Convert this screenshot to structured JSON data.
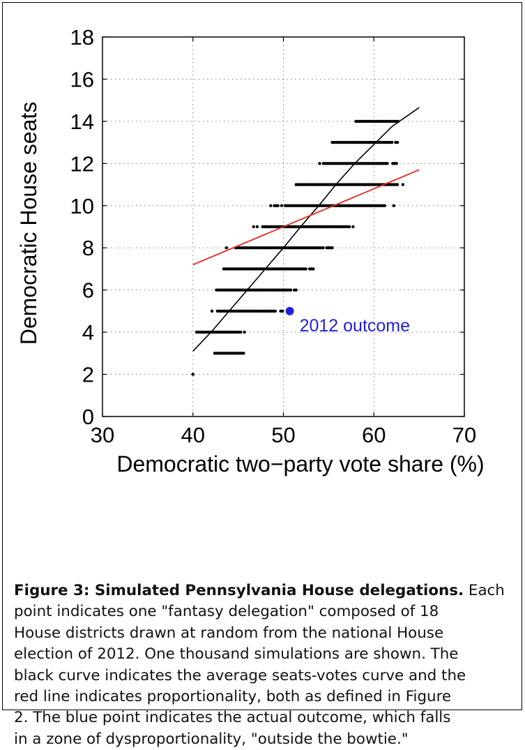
{
  "chart_data": {
    "type": "scatter",
    "xlabel": "Democratic two−party vote share (%)",
    "ylabel": "Democratic House seats",
    "xlim": [
      30,
      70
    ],
    "ylim": [
      0,
      18
    ],
    "xticks": [
      30,
      40,
      50,
      60,
      70
    ],
    "yticks": [
      0,
      2,
      4,
      6,
      8,
      10,
      12,
      14,
      16,
      18
    ],
    "grid": true,
    "simulations": {
      "color": "#000000",
      "rows": [
        {
          "seats": 2,
          "x_min": 40.0,
          "x_max": 40.0
        },
        {
          "seats": 3,
          "x_min": 42.0,
          "x_max": 45.8
        },
        {
          "seats": 4,
          "x_min": 40.0,
          "x_max": 46.3
        },
        {
          "seats": 5,
          "x_min": 41.5,
          "x_max": 49.9
        },
        {
          "seats": 6,
          "x_min": 41.8,
          "x_max": 52.2
        },
        {
          "seats": 7,
          "x_min": 43.0,
          "x_max": 53.5
        },
        {
          "seats": 8,
          "x_min": 43.5,
          "x_max": 56.2
        },
        {
          "seats": 9,
          "x_min": 46.5,
          "x_max": 58.5
        },
        {
          "seats": 10,
          "x_min": 48.2,
          "x_max": 62.2
        },
        {
          "seats": 11,
          "x_min": 50.8,
          "x_max": 63.4
        },
        {
          "seats": 12,
          "x_min": 53.2,
          "x_max": 62.7
        },
        {
          "seats": 13,
          "x_min": 55.0,
          "x_max": 63.0
        },
        {
          "seats": 14,
          "x_min": 57.0,
          "x_max": 63.5
        }
      ]
    },
    "seats_votes_curve": {
      "color": "#000000",
      "x": [
        40.0,
        42.0,
        44.0,
        46.0,
        48.0,
        50.0,
        52.0,
        54.0,
        56.0,
        58.0,
        60.0,
        62.0,
        64.0,
        65.0
      ],
      "y": [
        3.1,
        4.0,
        5.0,
        6.0,
        7.0,
        8.0,
        9.05,
        10.05,
        11.1,
        12.05,
        12.9,
        13.75,
        14.35,
        14.65
      ]
    },
    "proportionality_line": {
      "color": "#e8261c",
      "x": [
        40,
        65
      ],
      "y": [
        7.2,
        11.7
      ]
    },
    "outcome": {
      "x": 50.7,
      "y": 5.0,
      "color": "#1f1fe0",
      "label": "2012 outcome"
    }
  },
  "caption": {
    "bold": "Figure 3: Simulated Pennsylvania House delegations.",
    "lines": [
      " Each",
      "point indicates one \"fantasy delegation\" composed of 18",
      "House districts drawn at random from the national House",
      "election of 2012. One thousand simulations are shown. The",
      "black curve indicates the average seats-votes curve and the",
      "red line indicates proportionality, both as defined in Figure",
      "2. The blue point indicates the actual outcome, which falls",
      "in a zone of dysproportionality, \"outside the bowtie.\""
    ]
  }
}
